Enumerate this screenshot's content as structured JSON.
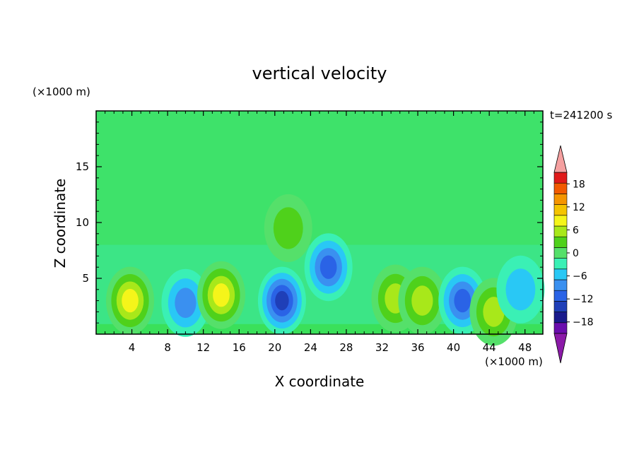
{
  "chart_data": {
    "type": "heatmap",
    "title": "vertical velocity",
    "xlabel": "X coordinate",
    "ylabel": "Z coordinate",
    "x_unit": "(×1000 m)",
    "y_unit": "(×1000 m)",
    "time_label": "t=241200 s",
    "xlim": [
      0,
      50
    ],
    "ylim": [
      0,
      20
    ],
    "x_ticks": [
      4,
      8,
      12,
      16,
      20,
      24,
      28,
      32,
      36,
      40,
      44,
      48
    ],
    "x_tick_labels": [
      "4",
      "8",
      "12",
      "16",
      "20",
      "24",
      "28",
      "32",
      "36",
      "40",
      "44",
      "48"
    ],
    "y_ticks": [
      5,
      10,
      15
    ],
    "y_tick_labels": [
      "5",
      "10",
      "15"
    ],
    "colorbar": {
      "levels": [
        -21,
        -18,
        -15,
        -12,
        -9,
        -6,
        -3,
        0,
        3,
        6,
        9,
        12,
        15,
        18,
        21
      ],
      "tick_values": [
        18,
        12,
        6,
        0,
        -6,
        -12,
        -18
      ],
      "tick_labels": [
        "18",
        "12",
        "6",
        "0",
        "−6",
        "−12",
        "−18"
      ],
      "colors": [
        "#6a0dad",
        "#1a1a8c",
        "#1f3fb8",
        "#2a63e6",
        "#3a90f0",
        "#29c8f5",
        "#3af0b5",
        "#55e06a",
        "#4fd11b",
        "#a8e81a",
        "#f5f51a",
        "#f5c400",
        "#f59500",
        "#f25a00",
        "#e01a1a"
      ],
      "under_color": "#8b1aa8",
      "over_color": "#f5a0a0"
    },
    "cells": [
      {
        "x": 3.8,
        "z": 3.0,
        "w": 11
      },
      {
        "x": 10.0,
        "z": 2.8,
        "w": -9
      },
      {
        "x": 14.0,
        "z": 3.5,
        "w": 10
      },
      {
        "x": 20.8,
        "z": 3.0,
        "w": -14
      },
      {
        "x": 21.5,
        "z": 9.5,
        "w": 5
      },
      {
        "x": 26.0,
        "z": 6.0,
        "w": -10
      },
      {
        "x": 33.5,
        "z": 3.2,
        "w": 9
      },
      {
        "x": 36.5,
        "z": 3.0,
        "w": 8
      },
      {
        "x": 41.0,
        "z": 3.0,
        "w": -11
      },
      {
        "x": 44.5,
        "z": 2.0,
        "w": 7
      },
      {
        "x": 47.5,
        "z": 4.0,
        "w": -5
      }
    ]
  }
}
